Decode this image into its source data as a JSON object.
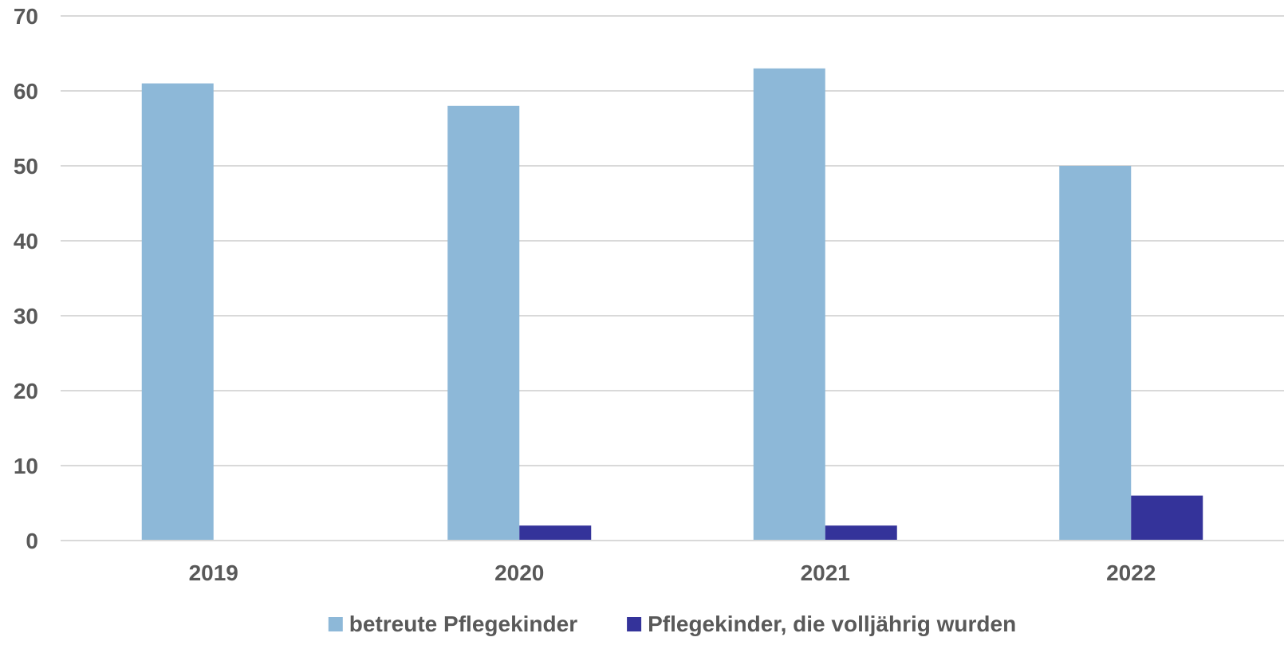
{
  "chart_data": {
    "type": "bar",
    "categories": [
      "2019",
      "2020",
      "2021",
      "2022"
    ],
    "series": [
      {
        "name": "betreute Pflegekinder",
        "values": [
          61,
          58,
          63,
          50
        ],
        "color": "#8db8d8"
      },
      {
        "name": "Pflegekinder, die volljährig wurden",
        "values": [
          0,
          2,
          2,
          6
        ],
        "color": "#34339a"
      }
    ],
    "ylim": [
      0,
      70
    ],
    "yticks": [
      0,
      10,
      20,
      30,
      40,
      50,
      60,
      70
    ],
    "grid": true,
    "legend_position": "bottom"
  }
}
